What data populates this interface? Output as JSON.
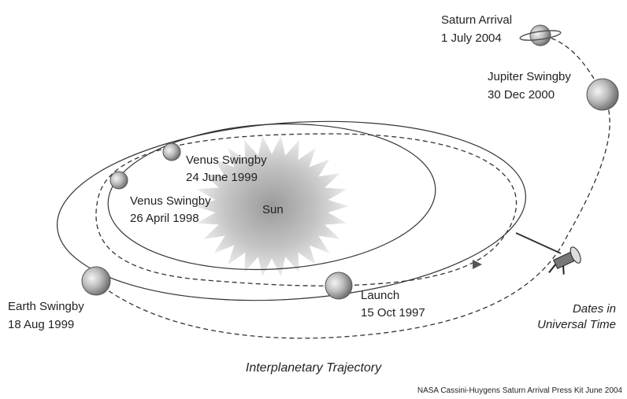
{
  "title": "Interplanetary Trajectory",
  "credit": "NASA Cassini-Huygens Saturn Arrival Press Kit June 2004",
  "sun": "Sun",
  "note": [
    "Dates in",
    "Universal Time"
  ],
  "events": [
    {
      "name": "Saturn Arrival",
      "date": "1 July 2004"
    },
    {
      "name": "Jupiter Swingby",
      "date": "30 Dec 2000"
    },
    {
      "name": "Venus Swingby",
      "date": "24 June 1999"
    },
    {
      "name": "Venus Swingby",
      "date": "26 April 1998"
    },
    {
      "name": "Earth Swingby",
      "date": "18 Aug 1999"
    },
    {
      "name": "Launch",
      "date": "15 Oct 1997"
    }
  ]
}
